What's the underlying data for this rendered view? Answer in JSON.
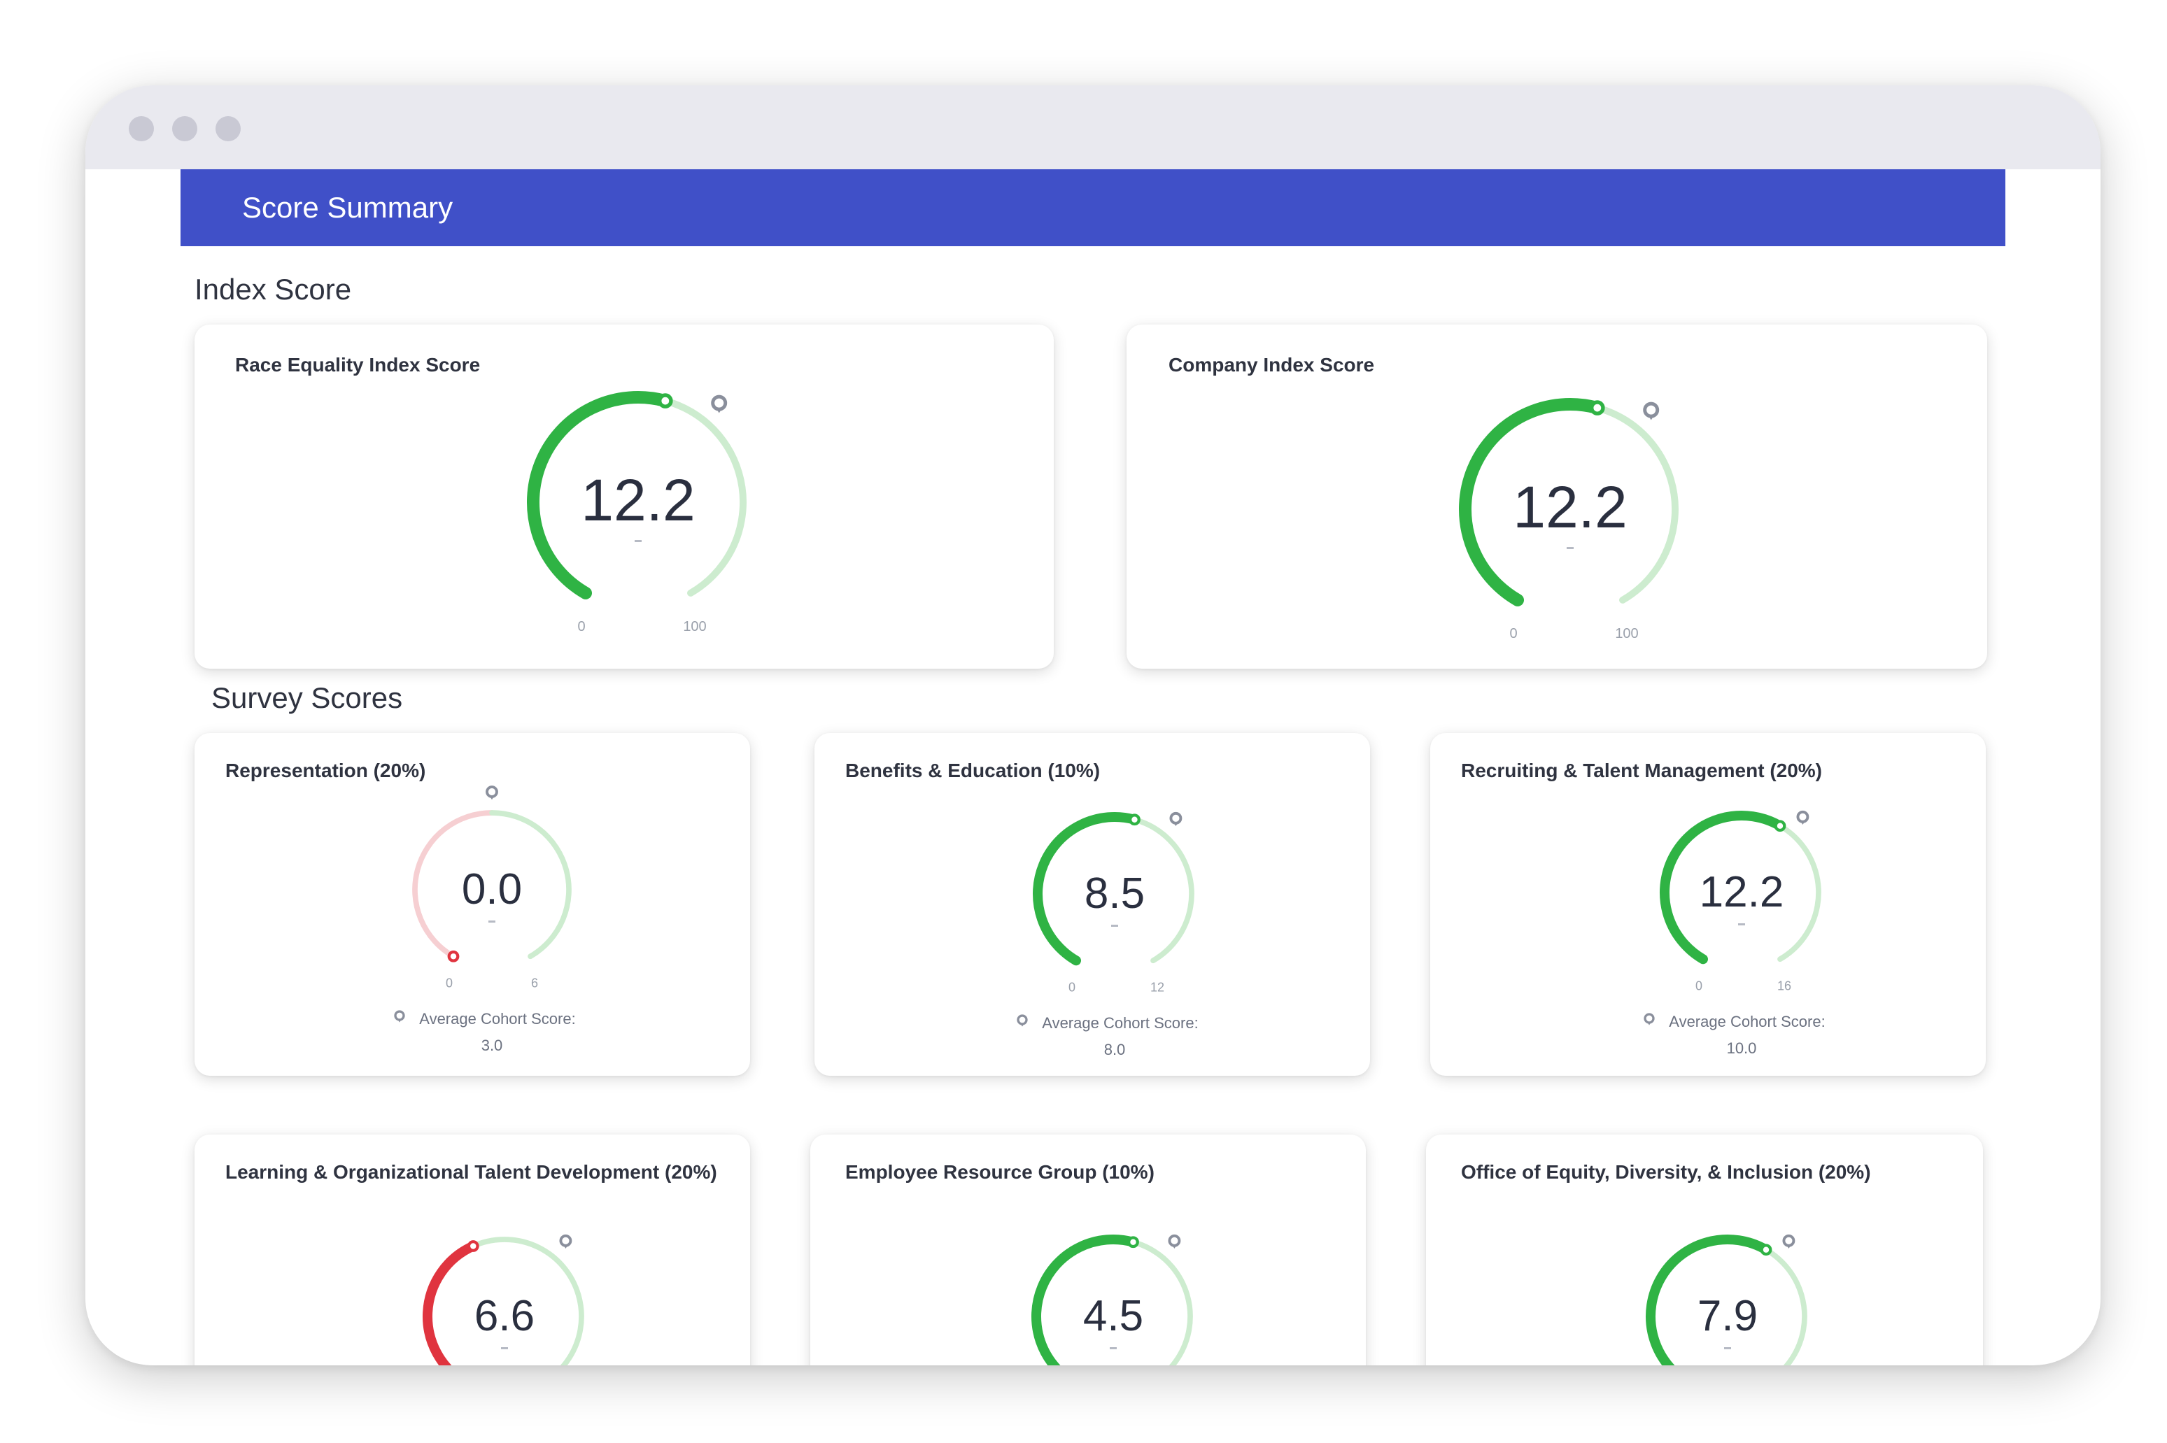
{
  "window": {
    "controls": [
      "close",
      "minimize",
      "maximize"
    ]
  },
  "header": {
    "title": "Score Summary"
  },
  "sections": {
    "index_title": "Index Score",
    "survey_title": "Survey Scores"
  },
  "colors": {
    "banner": "#4050c8",
    "green": "#2fb344",
    "green_light": "#cdeccf",
    "red": "#e0343f",
    "red_light": "#f6cfd2",
    "marker": "#8a8f9c"
  },
  "index_cards": [
    {
      "title": "Race Equality Index Score",
      "value": "12.2",
      "min": "0",
      "max": "100",
      "level": 0.55,
      "status": "green",
      "benchmark_icon": "location-pin-icon"
    },
    {
      "title": "Company Index Score",
      "value": "12.2",
      "min": "0",
      "max": "100",
      "level": 0.55,
      "status": "green",
      "benchmark_icon": "location-pin-icon"
    }
  ],
  "survey_cards": [
    {
      "title": "Representation (20%)",
      "value": "0.0",
      "min": "0",
      "max": "6",
      "level": 0.0,
      "status": "red",
      "cohort_label": "Average Cohort Score:",
      "cohort_value": "3.0"
    },
    {
      "title": "Benefits & Education (10%)",
      "value": "8.5",
      "min": "0",
      "max": "12",
      "level": 0.55,
      "status": "green",
      "cohort_label": "Average Cohort Score:",
      "cohort_value": "8.0"
    },
    {
      "title": "Recruiting & Talent Management (20%)",
      "value": "12.2",
      "min": "0",
      "max": "16",
      "level": 0.6,
      "status": "green",
      "cohort_label": "Average Cohort Score:",
      "cohort_value": "10.0"
    },
    {
      "title": "Learning & Organizational Talent Development (20%)",
      "value": "6.6",
      "status": "red",
      "level": 0.42
    },
    {
      "title": "Employee Resource Group (10%)",
      "value": "4.5",
      "status": "green",
      "level": 0.55
    },
    {
      "title": "Office of Equity, Diversity, & Inclusion (20%)",
      "value": "7.9",
      "status": "green",
      "level": 0.6
    }
  ]
}
